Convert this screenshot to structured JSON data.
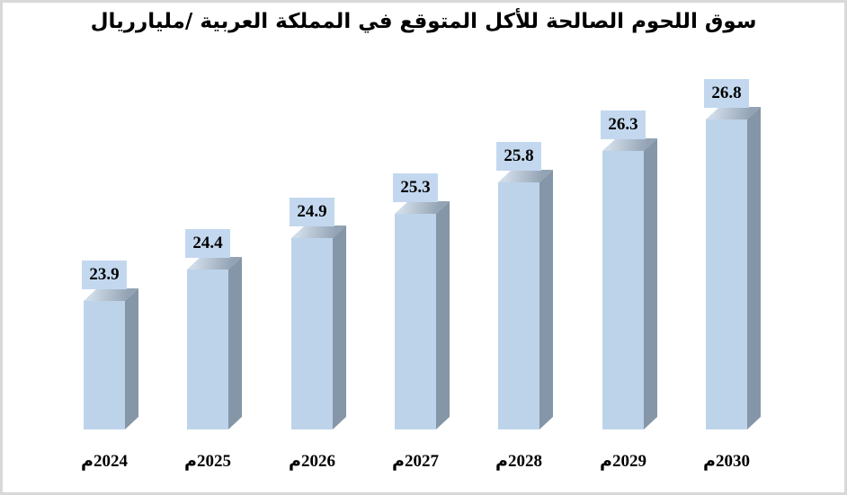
{
  "title": "سوق اللحوم الصالحة للأكل المتوقع في المملكة العربية /مليارريال",
  "chart_data": {
    "type": "bar",
    "style": "3d-column",
    "title": "سوق اللحوم الصالحة للأكل المتوقع في المملكة العربية /مليارريال",
    "categories": [
      "2024م",
      "2025م",
      "2026م",
      "2027م",
      "2028م",
      "2029م",
      "2030م"
    ],
    "values": [
      23.9,
      24.4,
      24.9,
      25.3,
      25.8,
      26.3,
      26.8
    ],
    "data_labels": [
      "23.9",
      "24.4",
      "24.9",
      "25.3",
      "25.8",
      "26.3",
      "26.8"
    ],
    "xlabel": "",
    "ylabel": "",
    "axis_visible": false,
    "gridlines": false,
    "legend": "none",
    "ylim_effective": [
      21.85,
      27.2
    ],
    "colors": {
      "bar_front": "#BDD3EA",
      "bar_side": "#8496A7",
      "bar_top_light": "#CFDBE7",
      "bar_top_dark": "#93A3B4",
      "value_label_bg": "#C3D8EF",
      "text": "#000000",
      "frame_border": "#D8D8D8",
      "background": "#FFFFFF"
    }
  }
}
